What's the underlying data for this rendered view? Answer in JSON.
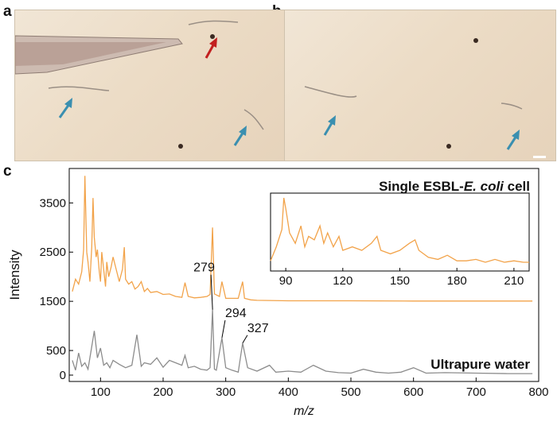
{
  "panels": {
    "a": "a",
    "b": "b",
    "c": "c"
  },
  "colors": {
    "sample": "#f2a34a",
    "water": "#8c8c8c",
    "arrow_blue": "#3a8fb0",
    "arrow_red": "#c21f1f"
  },
  "chart_data": {
    "type": "line",
    "xlabel": "m/z",
    "ylabel": "Intensity",
    "xlim": [
      50,
      800
    ],
    "x_ticks": [
      100,
      200,
      300,
      400,
      500,
      600,
      700,
      800
    ],
    "y_ticks": [
      {
        "label": "0",
        "value": 0
      },
      {
        "label": "500",
        "value": 500
      },
      {
        "label": "1500",
        "value": 1500
      },
      {
        "label": "2500",
        "value": 2500
      },
      {
        "label": "3500",
        "value": 3500
      }
    ],
    "ylim": [
      0,
      4200
    ],
    "grid": false,
    "series": [
      {
        "name": "Single ESBL-E. coli cell",
        "label_parts": [
          "Single ESBL-",
          "E. coli",
          " cell"
        ],
        "baseline": 1500,
        "color": "#f2a34a",
        "x": [
          55,
          60,
          65,
          70,
          73,
          75,
          78,
          80,
          83,
          86,
          88,
          90,
          93,
          95,
          98,
          100,
          102,
          105,
          108,
          110,
          113,
          117,
          120,
          125,
          130,
          135,
          138,
          140,
          145,
          150,
          155,
          160,
          165,
          170,
          175,
          180,
          190,
          200,
          210,
          220,
          230,
          235,
          240,
          250,
          260,
          270,
          275,
          279,
          282,
          290,
          294,
          300,
          310,
          320,
          327,
          330,
          340,
          350,
          400,
          500,
          600,
          700,
          790
        ],
        "y": [
          1700,
          1950,
          1850,
          2100,
          2550,
          4050,
          2500,
          2300,
          1900,
          2600,
          3600,
          2800,
          2400,
          2550,
          2100,
          1900,
          2500,
          2150,
          1800,
          2300,
          2000,
          2200,
          2400,
          2150,
          1900,
          2150,
          2600,
          1950,
          1850,
          1900,
          1750,
          1800,
          1900,
          1700,
          1760,
          1680,
          1700,
          1640,
          1650,
          1600,
          1580,
          1880,
          1600,
          1570,
          1580,
          1600,
          1640,
          3000,
          1650,
          1600,
          1900,
          1560,
          1560,
          1560,
          1900,
          1560,
          1530,
          1520,
          1510,
          1510,
          1505,
          1505,
          1505
        ]
      },
      {
        "name": "Ultrapure water",
        "baseline": 0,
        "color": "#8c8c8c",
        "x": [
          55,
          60,
          65,
          70,
          75,
          80,
          85,
          90,
          95,
          100,
          105,
          110,
          115,
          120,
          130,
          140,
          150,
          158,
          165,
          170,
          180,
          190,
          200,
          210,
          220,
          230,
          235,
          240,
          250,
          260,
          270,
          275,
          279,
          282,
          285,
          294,
          300,
          310,
          320,
          327,
          335,
          350,
          370,
          380,
          400,
          420,
          440,
          460,
          480,
          500,
          520,
          540,
          560,
          580,
          600,
          620,
          650,
          700,
          750,
          790
        ],
        "y": [
          300,
          100,
          450,
          180,
          250,
          120,
          500,
          900,
          350,
          550,
          200,
          250,
          150,
          300,
          220,
          150,
          200,
          820,
          180,
          250,
          220,
          350,
          160,
          300,
          250,
          200,
          400,
          150,
          180,
          120,
          100,
          150,
          1330,
          120,
          100,
          760,
          150,
          100,
          60,
          650,
          150,
          80,
          200,
          60,
          80,
          60,
          200,
          80,
          50,
          40,
          120,
          60,
          40,
          60,
          150,
          40,
          50,
          40,
          30,
          30
        ]
      }
    ],
    "peak_labels": [
      {
        "text": "279",
        "x": 279
      },
      {
        "text": "294",
        "x": 294
      },
      {
        "text": "327",
        "x": 327
      }
    ],
    "inset": {
      "xlim": [
        82,
        218
      ],
      "x_ticks": [
        90,
        120,
        150,
        180,
        210
      ],
      "x": [
        82,
        85,
        88,
        89,
        90,
        92,
        95,
        98,
        100,
        102,
        105,
        108,
        110,
        112,
        115,
        118,
        120,
        125,
        130,
        135,
        138,
        140,
        145,
        150,
        155,
        158,
        160,
        165,
        170,
        175,
        180,
        185,
        190,
        195,
        200,
        205,
        210,
        215,
        218
      ],
      "y": [
        0.1,
        0.3,
        0.55,
        1.0,
        0.85,
        0.5,
        0.35,
        0.6,
        0.3,
        0.45,
        0.4,
        0.6,
        0.35,
        0.5,
        0.3,
        0.45,
        0.25,
        0.3,
        0.25,
        0.35,
        0.45,
        0.25,
        0.2,
        0.25,
        0.35,
        0.4,
        0.25,
        0.15,
        0.12,
        0.18,
        0.1,
        0.1,
        0.12,
        0.08,
        0.12,
        0.08,
        0.1,
        0.08,
        0.08
      ]
    }
  }
}
